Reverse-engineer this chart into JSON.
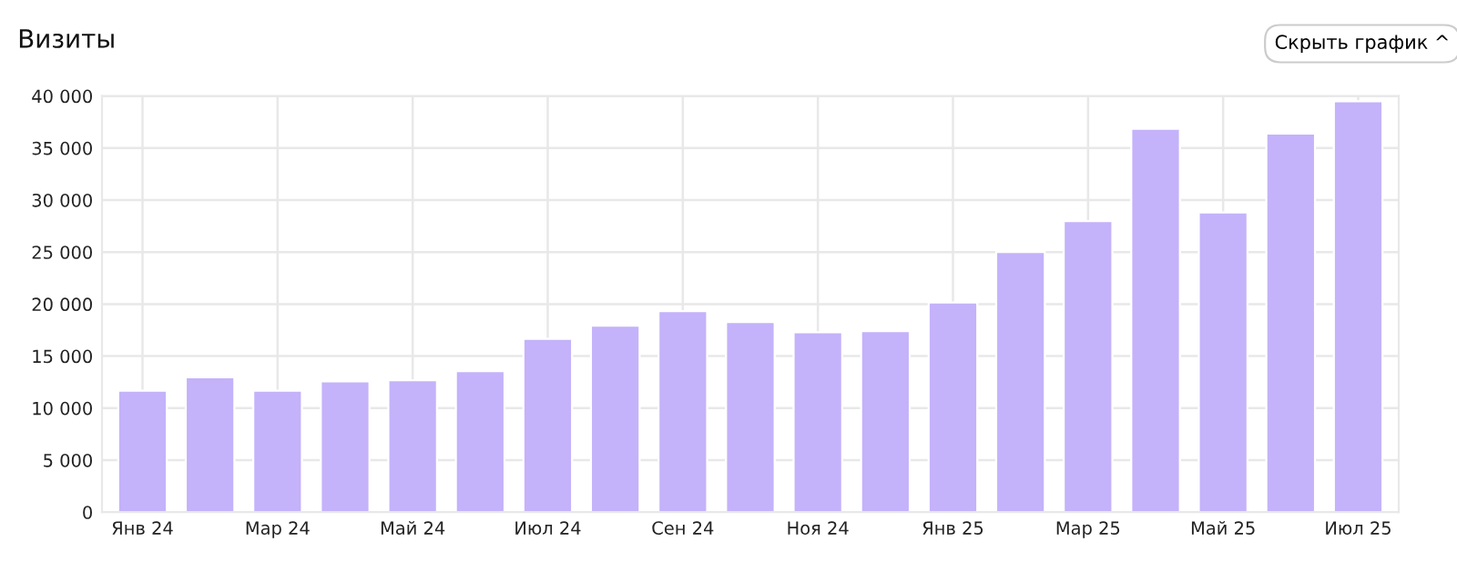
{
  "chart_data": {
    "type": "bar",
    "title": "Визиты",
    "annotations": [
      "Скрыть график ^"
    ],
    "categories": [
      "Янв 24",
      null,
      "Мар 24",
      null,
      "Май 24",
      null,
      "Июл 24",
      null,
      "Сен 24",
      null,
      "Ноя 24",
      null,
      "Янв 25",
      null,
      "Мар 25",
      null,
      "Май 25",
      null,
      "Июл 25"
    ],
    "values": [
      11680,
      12970,
      11680,
      12560,
      12680,
      13550,
      16650,
      17930,
      19330,
      18280,
      17290,
      17410,
      20150,
      25000,
      27980,
      36860,
      28800,
      36390,
      39490
    ],
    "color": "#c4b2fa",
    "ylim": [
      0,
      40000
    ],
    "yticks": [
      0,
      {
        "value": 5000,
        "label": "5 000"
      },
      {
        "value": 10000,
        "label": "10 000"
      },
      {
        "value": 15000,
        "label": "15 000"
      },
      {
        "value": 20000,
        "label": "20 000"
      },
      {
        "value": 25000,
        "label": "25 000"
      },
      {
        "value": 30000,
        "label": "30 000"
      },
      {
        "value": 35000,
        "label": "35 000"
      },
      {
        "value": 40000,
        "label": "40 000"
      }
    ],
    "grid": true
  }
}
